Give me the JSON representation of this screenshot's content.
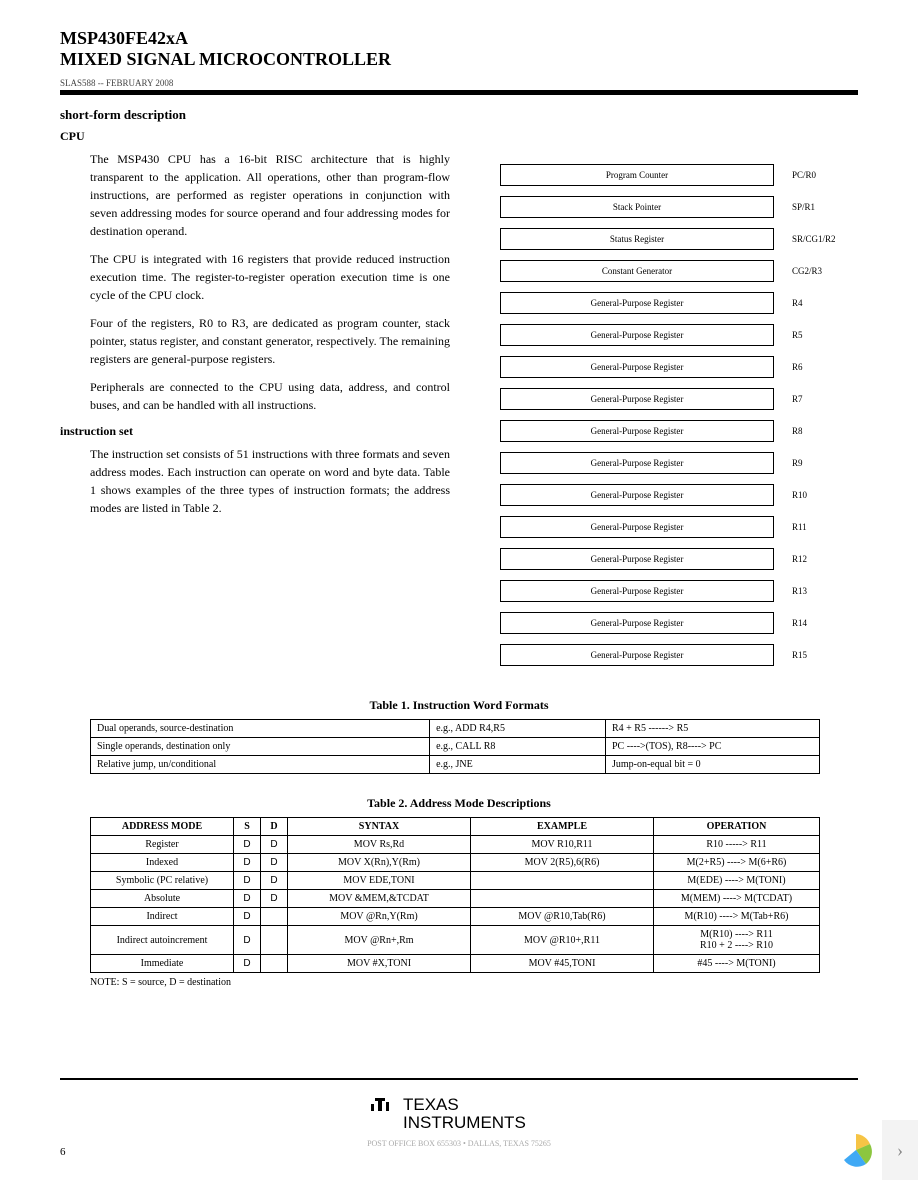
{
  "header": {
    "title_main": "MSP430FE42xA",
    "title_sub": "MIXED SIGNAL MICROCONTROLLER",
    "docnum": "SLAS588 -- FEBRUARY 2008"
  },
  "section": {
    "short_form": "short-form description",
    "cpu": "CPU",
    "instruction_set": "instruction set"
  },
  "body": {
    "p1": "The MSP430 CPU has a 16-bit RISC architecture that is highly transparent to the application. All operations, other than program-flow instructions, are performed as register operations in conjunction with seven addressing modes for source operand and four addressing modes for destination operand.",
    "p2": "The CPU is integrated with 16 registers that provide reduced instruction execution time. The register-to-register operation execution time is one cycle of the CPU clock.",
    "p3": "Four of the registers, R0 to R3, are dedicated as program counter, stack pointer, status register, and constant generator, respectively. The remaining registers are general-purpose registers.",
    "p4": "Peripherals are connected to the CPU using data, address, and control buses, and can be handled with all instructions.",
    "p5": "The instruction set consists of 51 instructions with three formats and seven address modes. Each instruction can operate on word and byte data. Table 1 shows examples of the three types of instruction formats; the address modes are listed in Table 2."
  },
  "registers": [
    {
      "box": "Program Counter",
      "lbl": "PC/R0"
    },
    {
      "box": "Stack Pointer",
      "lbl": "SP/R1"
    },
    {
      "box": "Status Register",
      "lbl": "SR/CG1/R2"
    },
    {
      "box": "Constant Generator",
      "lbl": "CG2/R3"
    },
    {
      "box": "General-Purpose Register",
      "lbl": "R4"
    },
    {
      "box": "General-Purpose Register",
      "lbl": "R5"
    },
    {
      "box": "General-Purpose Register",
      "lbl": "R6"
    },
    {
      "box": "General-Purpose Register",
      "lbl": "R7"
    },
    {
      "box": "General-Purpose Register",
      "lbl": "R8"
    },
    {
      "box": "General-Purpose Register",
      "lbl": "R9"
    },
    {
      "box": "General-Purpose Register",
      "lbl": "R10"
    },
    {
      "box": "General-Purpose Register",
      "lbl": "R11"
    },
    {
      "box": "General-Purpose Register",
      "lbl": "R12"
    },
    {
      "box": "General-Purpose Register",
      "lbl": "R13"
    },
    {
      "box": "General-Purpose Register",
      "lbl": "R14"
    },
    {
      "box": "General-Purpose Register",
      "lbl": "R15"
    }
  ],
  "table1": {
    "caption": "Table 1. Instruction Word Formats",
    "rows": [
      [
        "Dual operands, source-destination",
        "e.g., ADD R4,R5",
        "R4 + R5 ------> R5"
      ],
      [
        "Single operands, destination only",
        "e.g., CALL          R8",
        "PC ---->(TOS), R8----> PC"
      ],
      [
        "Relative jump, un/conditional",
        "e.g., JNE",
        "Jump-on-equal bit = 0"
      ]
    ]
  },
  "table2": {
    "caption": "Table 2. Address Mode Descriptions",
    "headers": [
      "ADDRESS MODE",
      "S",
      "D",
      "SYNTAX",
      "EXAMPLE",
      "OPERATION"
    ],
    "rows": [
      {
        "mode": "Register",
        "s": "D",
        "d": "D",
        "syntax": "MOV Rs,Rd",
        "example": "MOV R10,R11",
        "op": "R10 -----> R11"
      },
      {
        "mode": "Indexed",
        "s": "D",
        "d": "D",
        "syntax": "MOV X(Rn),Y(Rm)",
        "example": "MOV 2(R5),6(R6)",
        "op": "M(2+R5) ----> M(6+R6)"
      },
      {
        "mode": "Symbolic (PC relative)",
        "s": "D",
        "d": "D",
        "syntax": "MOV EDE,TONI",
        "example": "",
        "op": "M(EDE) ----> M(TONI)"
      },
      {
        "mode": "Absolute",
        "s": "D",
        "d": "D",
        "syntax": "MOV &MEM,&TCDAT",
        "example": "",
        "op": "M(MEM) ----> M(TCDAT)"
      },
      {
        "mode": "Indirect",
        "s": "D",
        "d": "",
        "syntax": "MOV @Rn,Y(Rm)",
        "example": "MOV @R10,Tab(R6)",
        "op": "M(R10) ----> M(Tab+R6)"
      },
      {
        "mode": "Indirect autoincrement",
        "s": "D",
        "d": "",
        "syntax": "MOV @Rn+,Rm",
        "example": "MOV @R10+,R11",
        "op": "M(R10) ----> R11\nR10 + 2 ----> R10"
      },
      {
        "mode": "Immediate",
        "s": "D",
        "d": "",
        "syntax": "MOV #X,TONI",
        "example": "MOV #45,TONI",
        "op": "#45 ----> M(TONI)"
      }
    ],
    "note": "NOTE: S = source, D = destination"
  },
  "footer": {
    "line": "POST OFFICE BOX 655303      •      DALLAS, TEXAS 75265",
    "page": "6",
    "logo1": "TEXAS",
    "logo2": "INSTRUMENTS"
  }
}
